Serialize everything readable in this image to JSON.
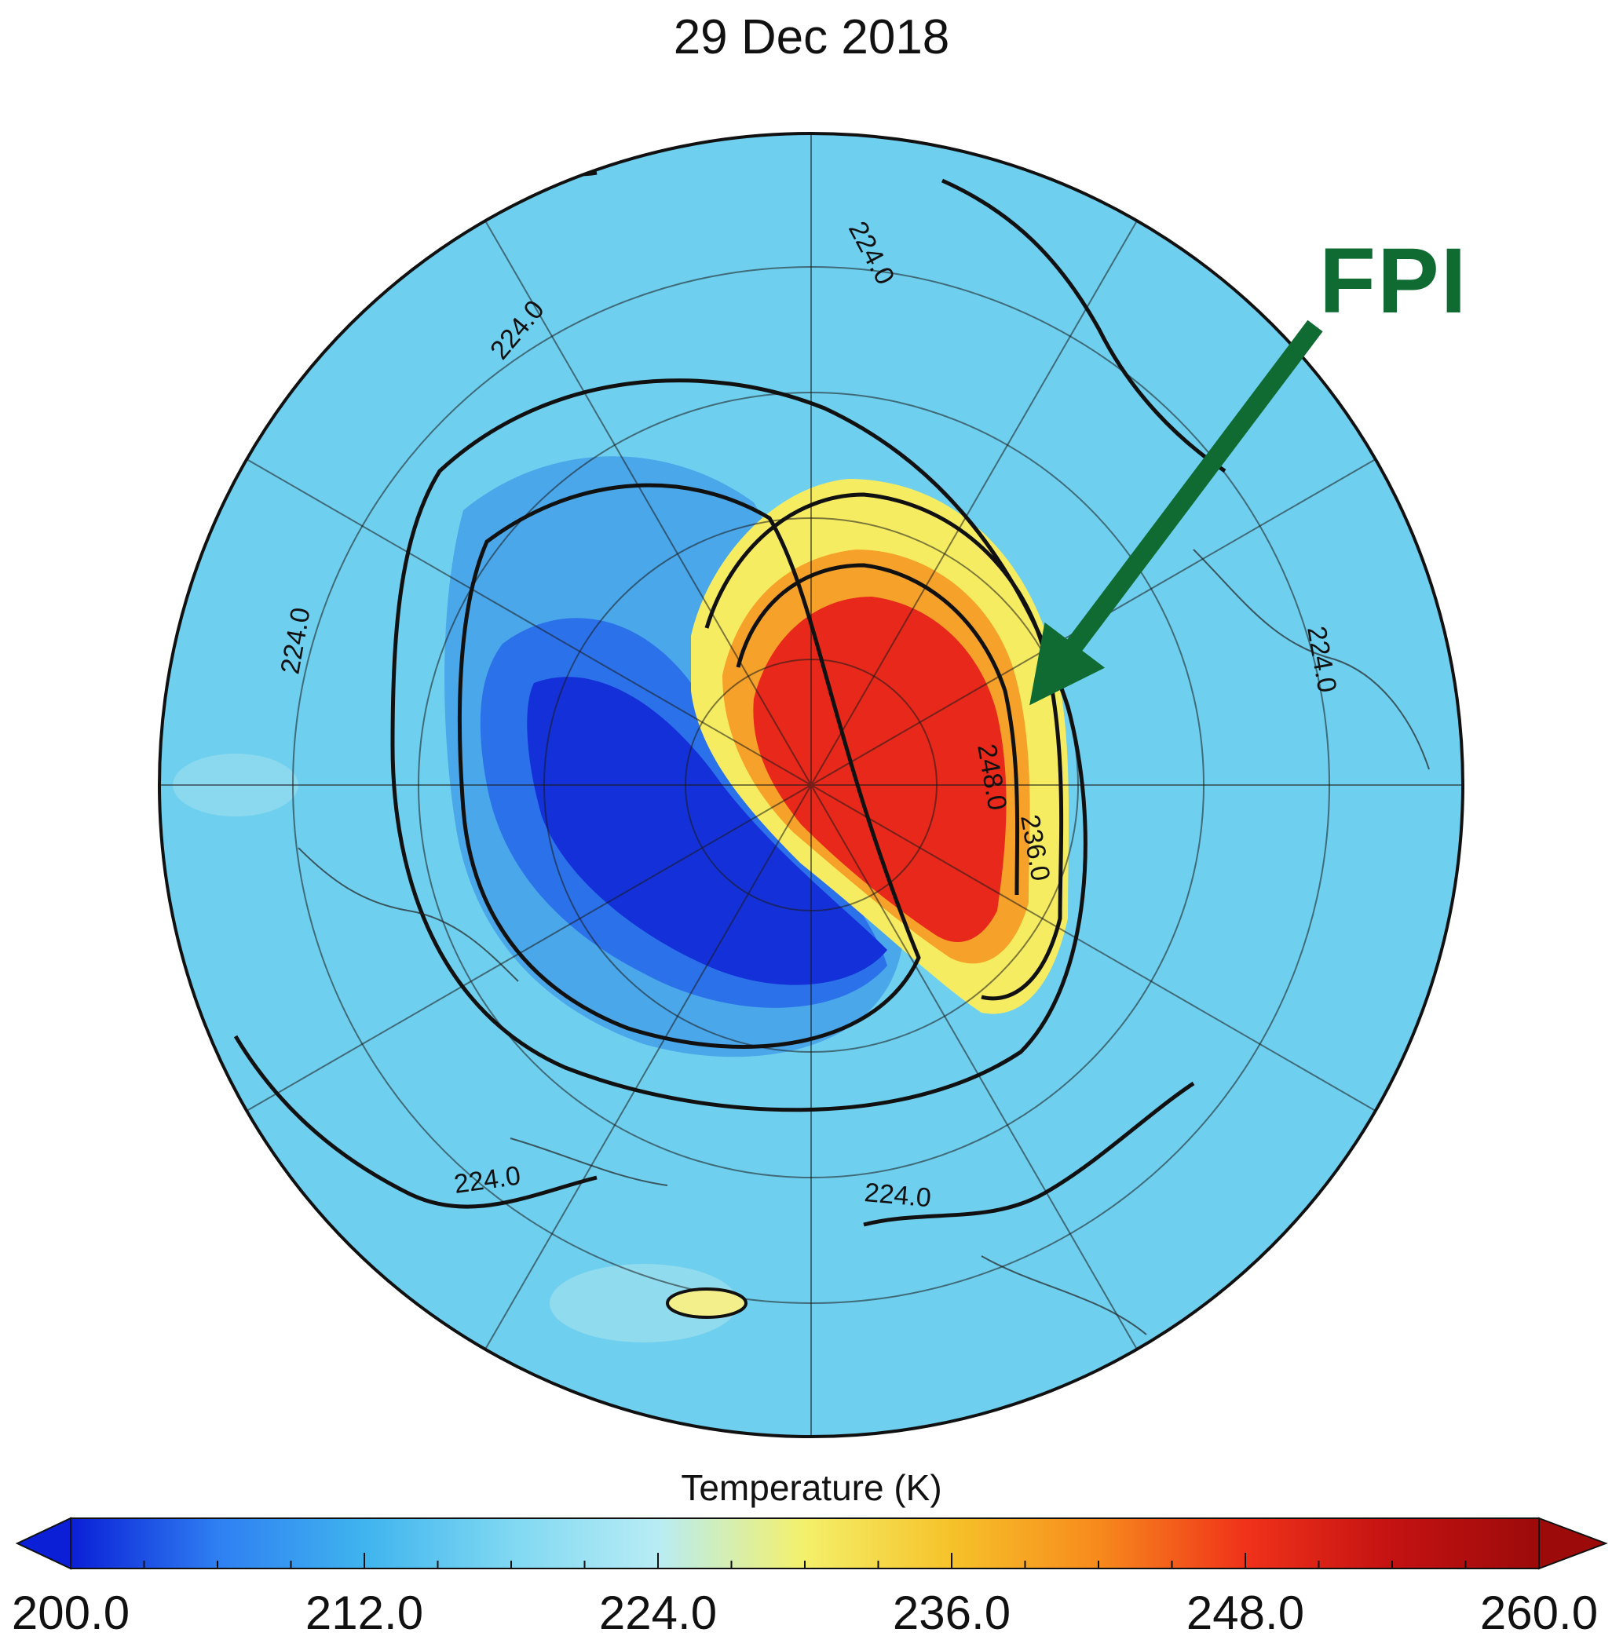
{
  "title": "29 Dec 2018",
  "annotation": {
    "label": "FPI",
    "color": "#0f6b32"
  },
  "contour_labels": [
    "224.0",
    "224.0",
    "224.0",
    "224.0",
    "224.0",
    "224.0",
    "248.0",
    "236.0"
  ],
  "colorbar": {
    "title": "Temperature (K)",
    "min": 200.0,
    "max": 260.0,
    "ticks": [
      "200.0",
      "212.0",
      "224.0",
      "236.0",
      "248.0",
      "260.0"
    ],
    "tick_values": [
      200,
      212,
      224,
      236,
      248,
      260
    ],
    "colors": [
      "#0a1fd6",
      "#2f7ff2",
      "#3fb4ee",
      "#7fd8f2",
      "#b8ecf4",
      "#f4f06a",
      "#f6c22a",
      "#f78a1c",
      "#f0321a",
      "#c41212",
      "#9c0a0a"
    ]
  },
  "map_colors": {
    "background": "#6fcfee",
    "cold_core": "#1430d8",
    "cold_mid": "#2b72ea",
    "cold_outer": "#4aa7ea",
    "warm_outer": "#f6ec62",
    "warm_mid": "#f5a12a",
    "warm_core": "#e8281a"
  }
}
